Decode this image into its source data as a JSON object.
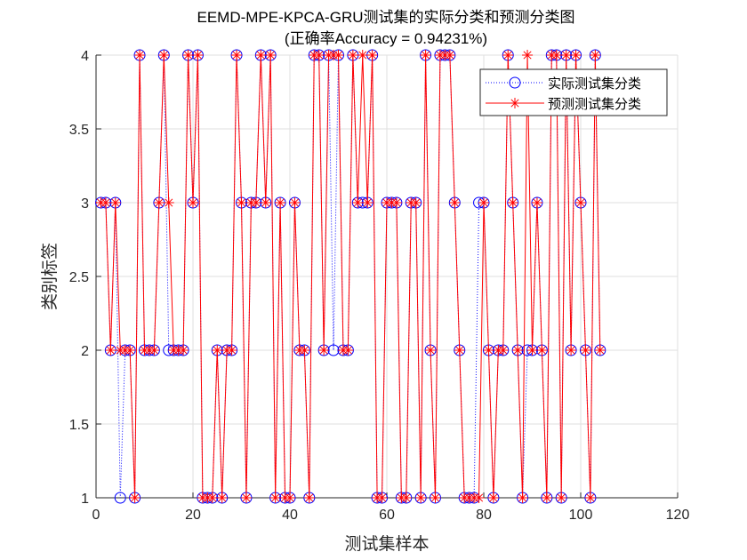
{
  "chart_data": {
    "type": "line",
    "title": "EEMD-MPE-KPCA-GRU测试集的实际分类和预测分类图",
    "subtitle": "(正确率Accuracy = 0.94231%)",
    "xlabel": "测试集样本",
    "ylabel": "类别标签",
    "xlim": [
      0,
      120
    ],
    "ylim": [
      1,
      4
    ],
    "xticks": [
      "0",
      "20",
      "40",
      "60",
      "80",
      "100",
      "120"
    ],
    "yticks": [
      "1",
      "1.5",
      "2",
      "2.5",
      "3",
      "3.5",
      "4"
    ],
    "grid": true,
    "legend_position": "top-right",
    "series": [
      {
        "name": "实际测试集分类",
        "color": "#0000ff",
        "marker": "circle",
        "line": "dotted",
        "values": [
          3,
          3,
          2,
          3,
          1,
          2,
          2,
          1,
          4,
          2,
          2,
          2,
          3,
          4,
          2,
          2,
          2,
          2,
          4,
          3,
          4,
          1,
          1,
          1,
          2,
          1,
          2,
          2,
          4,
          3,
          1,
          3,
          3,
          4,
          3,
          4,
          1,
          3,
          1,
          1,
          3,
          2,
          2,
          1,
          4,
          4,
          2,
          4,
          2,
          4,
          2,
          2,
          4,
          3,
          3,
          3,
          4,
          1,
          1,
          3,
          3,
          3,
          1,
          1,
          3,
          3,
          1,
          4,
          2,
          1,
          4,
          4,
          4,
          3,
          2,
          1,
          1,
          1,
          3,
          3,
          2,
          1,
          2,
          2,
          4,
          3,
          2,
          1,
          2,
          2,
          3,
          2,
          1,
          4,
          4,
          1,
          4,
          2,
          4,
          3,
          2,
          1,
          4,
          2
        ]
      },
      {
        "name": "预测测试集分类",
        "color": "#ff0000",
        "marker": "asterisk",
        "line": "solid",
        "values": [
          3,
          3,
          2,
          3,
          2,
          2,
          2,
          1,
          4,
          2,
          2,
          2,
          3,
          4,
          3,
          2,
          2,
          2,
          4,
          3,
          4,
          1,
          1,
          1,
          2,
          1,
          2,
          2,
          4,
          3,
          1,
          3,
          3,
          4,
          3,
          4,
          1,
          3,
          1,
          1,
          3,
          2,
          2,
          1,
          4,
          4,
          2,
          4,
          4,
          4,
          2,
          2,
          4,
          3,
          4,
          3,
          4,
          1,
          1,
          3,
          3,
          3,
          1,
          1,
          3,
          3,
          1,
          4,
          2,
          1,
          4,
          4,
          4,
          3,
          2,
          1,
          1,
          1,
          1,
          3,
          2,
          1,
          2,
          2,
          4,
          3,
          2,
          1,
          4,
          2,
          3,
          2,
          1,
          4,
          4,
          1,
          4,
          2,
          4,
          3,
          2,
          1,
          4,
          2
        ]
      }
    ]
  }
}
